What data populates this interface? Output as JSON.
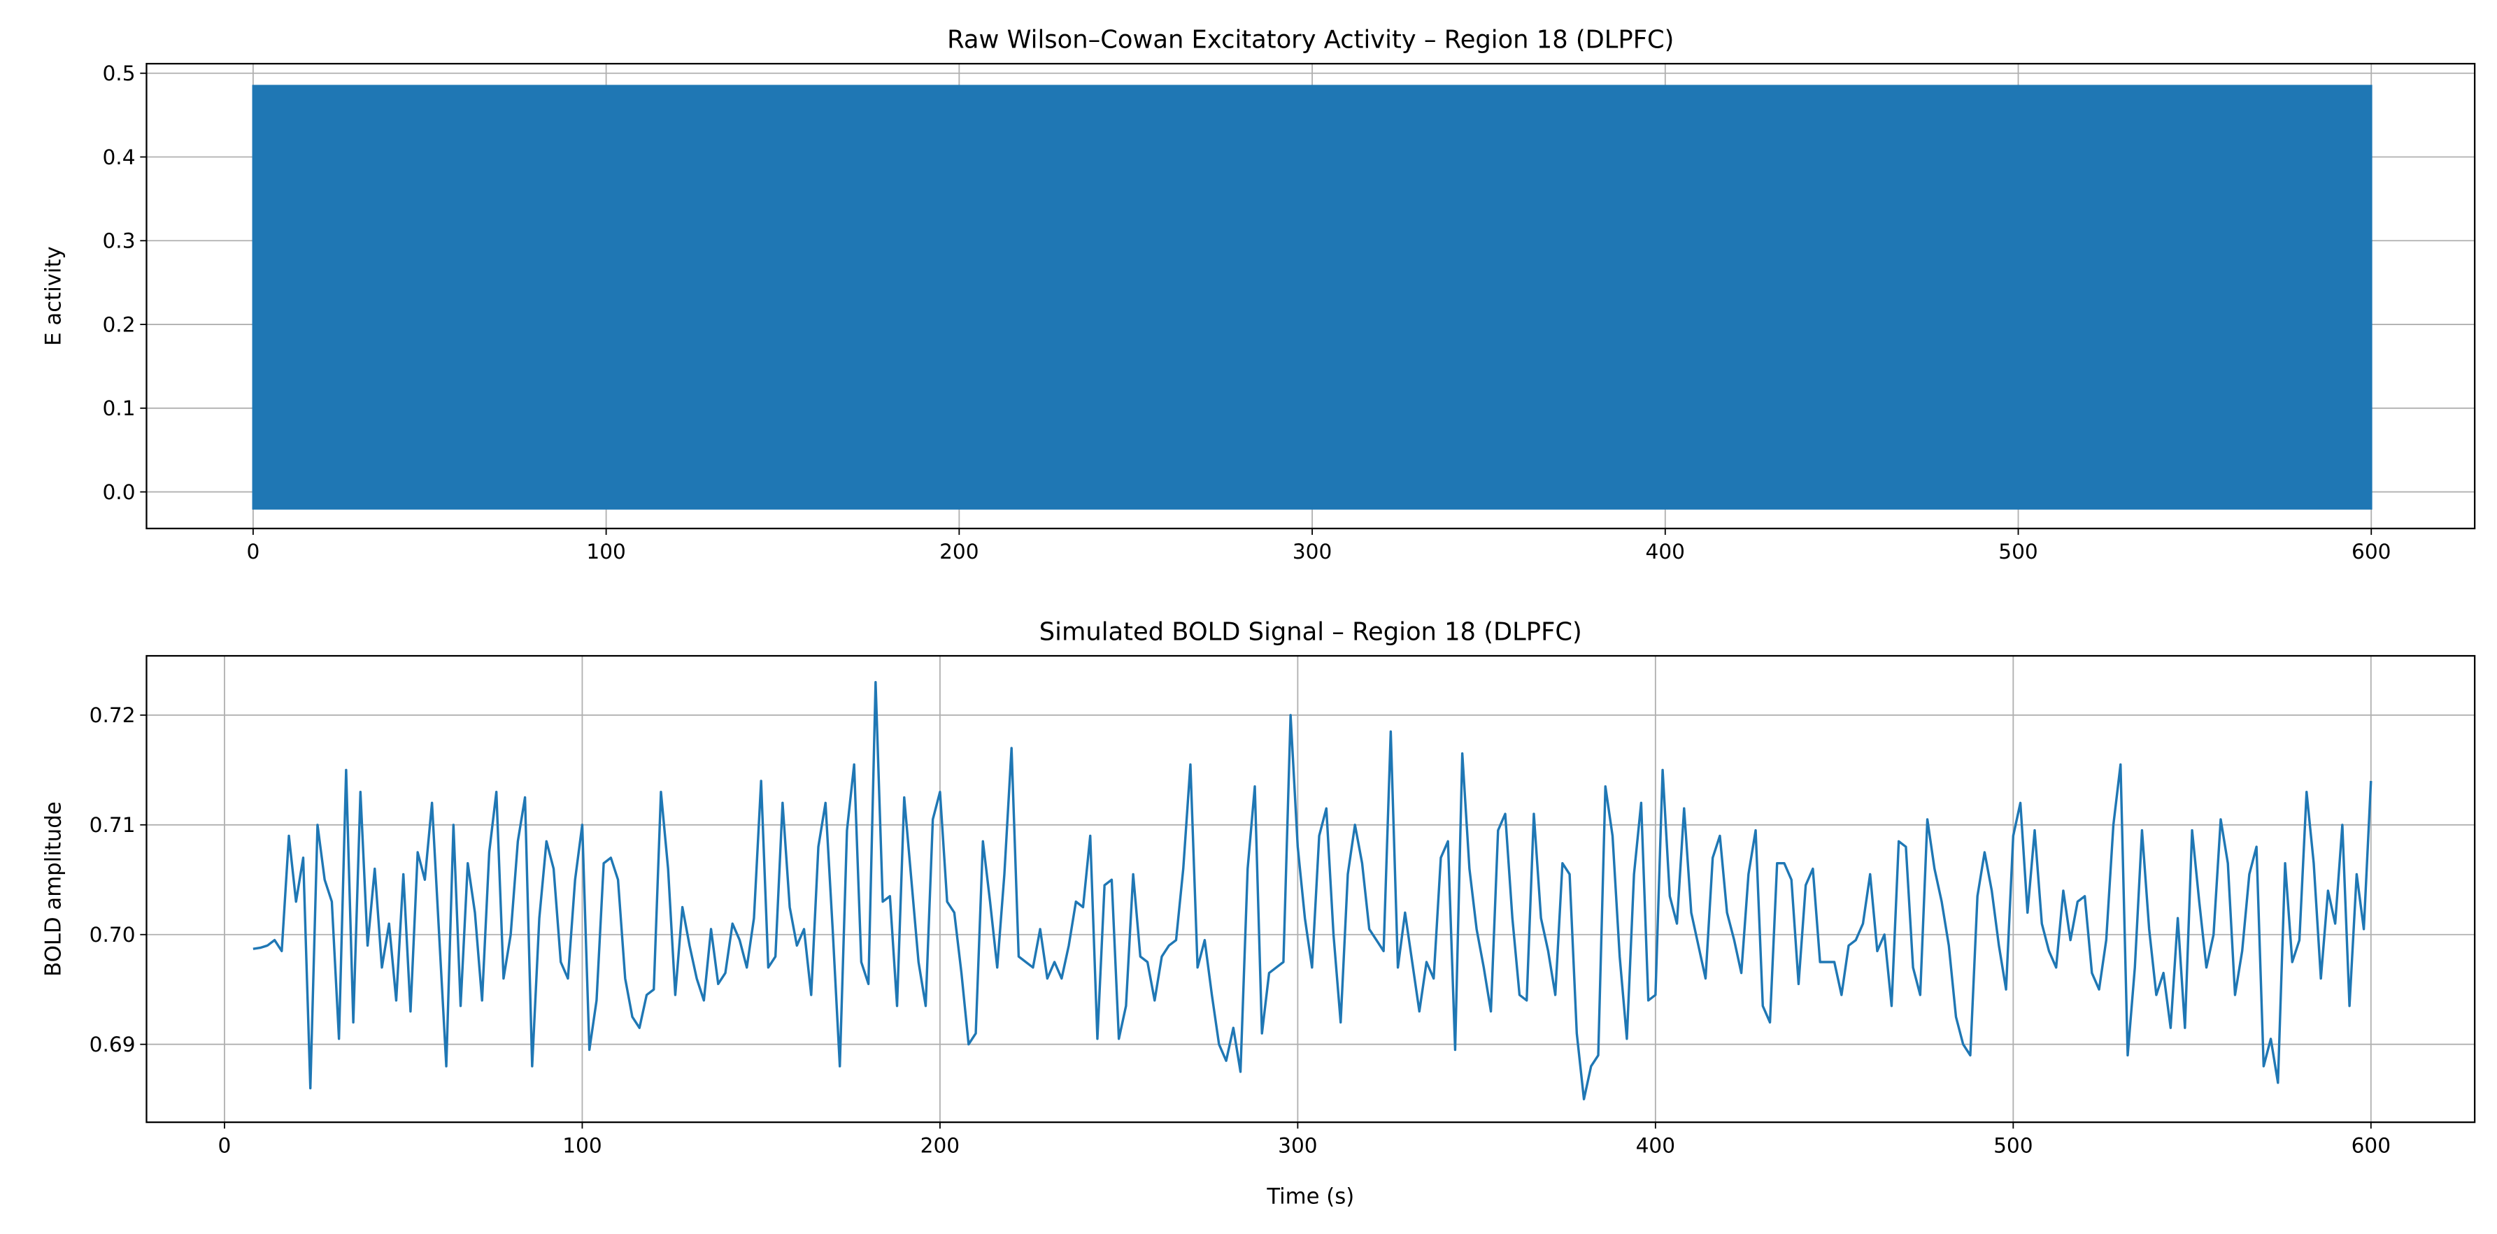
{
  "chart_data": [
    {
      "type": "band",
      "title": "Raw Wilson–Cowan Excitatory Activity – Region 18 (DLPFC)",
      "y_label": "E activity",
      "color": "#1f77b4",
      "x": [
        0,
        600
      ],
      "upper": [
        0.485,
        0.485
      ],
      "lower": [
        -0.02,
        -0.02
      ],
      "xlim": [
        -30.2,
        629.3
      ],
      "ylim": [
        -0.0437,
        0.5114
      ],
      "xticks": [
        0,
        100,
        200,
        300,
        400,
        500,
        600
      ],
      "yticks": [
        {
          "value": 0,
          "label": "0.0"
        },
        0.1,
        0.2,
        0.3,
        0.4,
        0.5
      ],
      "grid": true
    },
    {
      "type": "line",
      "title": "Simulated BOLD Signal – Region 18 (DLPFC)",
      "x_label": "Time (s)",
      "y_label": "BOLD amplitude",
      "color": "#1f77b4",
      "x": [
        8,
        10,
        12,
        14,
        16,
        18,
        20,
        22,
        24,
        26,
        28,
        30,
        32,
        34,
        36,
        38,
        40,
        42,
        44,
        46,
        48,
        50,
        52,
        54,
        56,
        58,
        60,
        62,
        64,
        66,
        68,
        70,
        72,
        74,
        76,
        78,
        80,
        82,
        84,
        86,
        88,
        90,
        92,
        94,
        96,
        98,
        100,
        102,
        104,
        106,
        108,
        110,
        112,
        114,
        116,
        118,
        120,
        122,
        124,
        126,
        128,
        130,
        132,
        134,
        136,
        138,
        140,
        142,
        144,
        146,
        148,
        150,
        152,
        154,
        156,
        158,
        160,
        162,
        164,
        166,
        168,
        170,
        172,
        174,
        176,
        178,
        180,
        182,
        184,
        186,
        188,
        190,
        192,
        194,
        196,
        198,
        200,
        202,
        204,
        206,
        208,
        210,
        212,
        214,
        216,
        218,
        220,
        222,
        224,
        226,
        228,
        230,
        232,
        234,
        236,
        238,
        240,
        242,
        244,
        246,
        248,
        250,
        252,
        254,
        256,
        258,
        260,
        262,
        264,
        266,
        268,
        270,
        272,
        274,
        276,
        278,
        280,
        282,
        284,
        286,
        288,
        290,
        292,
        294,
        296,
        298,
        300,
        302,
        304,
        306,
        308,
        310,
        312,
        314,
        316,
        318,
        320,
        322,
        324,
        326,
        328,
        330,
        332,
        334,
        336,
        338,
        340,
        342,
        344,
        346,
        348,
        350,
        352,
        354,
        356,
        358,
        360,
        362,
        364,
        366,
        368,
        370,
        372,
        374,
        376,
        378,
        380,
        382,
        384,
        386,
        388,
        390,
        392,
        394,
        396,
        398,
        400,
        402,
        404,
        406,
        408,
        410,
        412,
        414,
        416,
        418,
        420,
        422,
        424,
        426,
        428,
        430,
        432,
        434,
        436,
        438,
        440,
        442,
        444,
        446,
        448,
        450,
        452,
        454,
        456,
        458,
        460,
        462,
        464,
        466,
        468,
        470,
        472,
        474,
        476,
        478,
        480,
        482,
        484,
        486,
        488,
        490,
        492,
        494,
        496,
        498,
        500,
        502,
        504,
        506,
        508,
        510,
        512,
        514,
        516,
        518,
        520,
        522,
        524,
        526,
        528,
        530,
        532,
        534,
        536,
        538,
        540,
        542,
        544,
        546,
        548,
        550,
        552,
        554,
        556,
        558,
        560,
        562,
        564,
        566,
        568,
        570,
        572,
        574,
        576,
        578,
        580,
        582,
        584,
        586,
        588,
        590,
        592,
        594,
        596,
        598,
        600
      ],
      "values": [
        0.6987,
        0.6988,
        0.699,
        0.6995,
        0.6985,
        0.709,
        0.703,
        0.707,
        0.686,
        0.71,
        0.705,
        0.703,
        0.6905,
        0.715,
        0.692,
        0.713,
        0.699,
        0.706,
        0.697,
        0.701,
        0.694,
        0.7055,
        0.693,
        0.7075,
        0.705,
        0.712,
        0.7,
        0.688,
        0.71,
        0.6935,
        0.7065,
        0.702,
        0.694,
        0.7075,
        0.713,
        0.696,
        0.7,
        0.7085,
        0.7125,
        0.688,
        0.7015,
        0.7085,
        0.706,
        0.6975,
        0.696,
        0.705,
        0.71,
        0.6895,
        0.694,
        0.7065,
        0.707,
        0.705,
        0.696,
        0.6925,
        0.6915,
        0.6945,
        0.695,
        0.713,
        0.706,
        0.6945,
        0.7025,
        0.699,
        0.696,
        0.694,
        0.7005,
        0.6955,
        0.6965,
        0.701,
        0.6995,
        0.697,
        0.7015,
        0.714,
        0.697,
        0.698,
        0.712,
        0.7025,
        0.699,
        0.7005,
        0.6945,
        0.708,
        0.712,
        0.7005,
        0.688,
        0.7095,
        0.7155,
        0.6975,
        0.6955,
        0.723,
        0.703,
        0.7035,
        0.6935,
        0.7125,
        0.705,
        0.6975,
        0.6935,
        0.7105,
        0.713,
        0.703,
        0.702,
        0.6965,
        0.69,
        0.691,
        0.7085,
        0.703,
        0.697,
        0.7055,
        0.717,
        0.698,
        0.6975,
        0.697,
        0.7005,
        0.696,
        0.6975,
        0.696,
        0.699,
        0.703,
        0.7025,
        0.709,
        0.6905,
        0.7045,
        0.705,
        0.6905,
        0.6935,
        0.7055,
        0.698,
        0.6975,
        0.694,
        0.698,
        0.699,
        0.6995,
        0.706,
        0.7155,
        0.697,
        0.6995,
        0.6945,
        0.69,
        0.6885,
        0.6915,
        0.6875,
        0.706,
        0.7135,
        0.691,
        0.6965,
        0.697,
        0.6975,
        0.72,
        0.708,
        0.7015,
        0.697,
        0.709,
        0.7115,
        0.7,
        0.692,
        0.7055,
        0.71,
        0.7065,
        0.7005,
        0.6995,
        0.6985,
        0.7185,
        0.697,
        0.702,
        0.6975,
        0.693,
        0.6975,
        0.696,
        0.707,
        0.7085,
        0.6895,
        0.7165,
        0.706,
        0.7005,
        0.697,
        0.693,
        0.7095,
        0.711,
        0.7015,
        0.6945,
        0.694,
        0.711,
        0.7015,
        0.6985,
        0.6945,
        0.7065,
        0.7055,
        0.691,
        0.685,
        0.688,
        0.689,
        0.7135,
        0.709,
        0.698,
        0.6905,
        0.7055,
        0.712,
        0.694,
        0.6945,
        0.715,
        0.7035,
        0.701,
        0.7115,
        0.702,
        0.699,
        0.696,
        0.707,
        0.709,
        0.702,
        0.6995,
        0.6965,
        0.7055,
        0.7095,
        0.6935,
        0.692,
        0.7065,
        0.7065,
        0.705,
        0.6955,
        0.7045,
        0.706,
        0.6975,
        0.6975,
        0.6975,
        0.6945,
        0.699,
        0.6995,
        0.701,
        0.7055,
        0.6985,
        0.7,
        0.6935,
        0.7085,
        0.708,
        0.697,
        0.6945,
        0.7105,
        0.706,
        0.703,
        0.699,
        0.6925,
        0.69,
        0.689,
        0.7035,
        0.7075,
        0.704,
        0.699,
        0.695,
        0.709,
        0.712,
        0.702,
        0.7095,
        0.701,
        0.6985,
        0.697,
        0.704,
        0.6995,
        0.703,
        0.7035,
        0.6965,
        0.695,
        0.6995,
        0.71,
        0.7155,
        0.689,
        0.697,
        0.7095,
        0.7005,
        0.6945,
        0.6965,
        0.6915,
        0.7015,
        0.6915,
        0.7095,
        0.703,
        0.697,
        0.7,
        0.7105,
        0.7065,
        0.6945,
        0.6985,
        0.7055,
        0.708,
        0.688,
        0.6905,
        0.6865,
        0.7065,
        0.6975,
        0.6995,
        0.713,
        0.7065,
        0.696,
        0.704,
        0.701,
        0.71,
        0.6935,
        0.7055,
        0.7005,
        0.714
      ],
      "xlim": [
        -21.8,
        629
      ],
      "ylim": [
        0.6829,
        0.7254
      ],
      "xticks": [
        0,
        100,
        200,
        300,
        400,
        500,
        600
      ],
      "yticks": [
        0.69,
        {
          "value": 0.7,
          "label": "0.70"
        },
        0.71,
        0.72
      ],
      "grid": true
    }
  ]
}
